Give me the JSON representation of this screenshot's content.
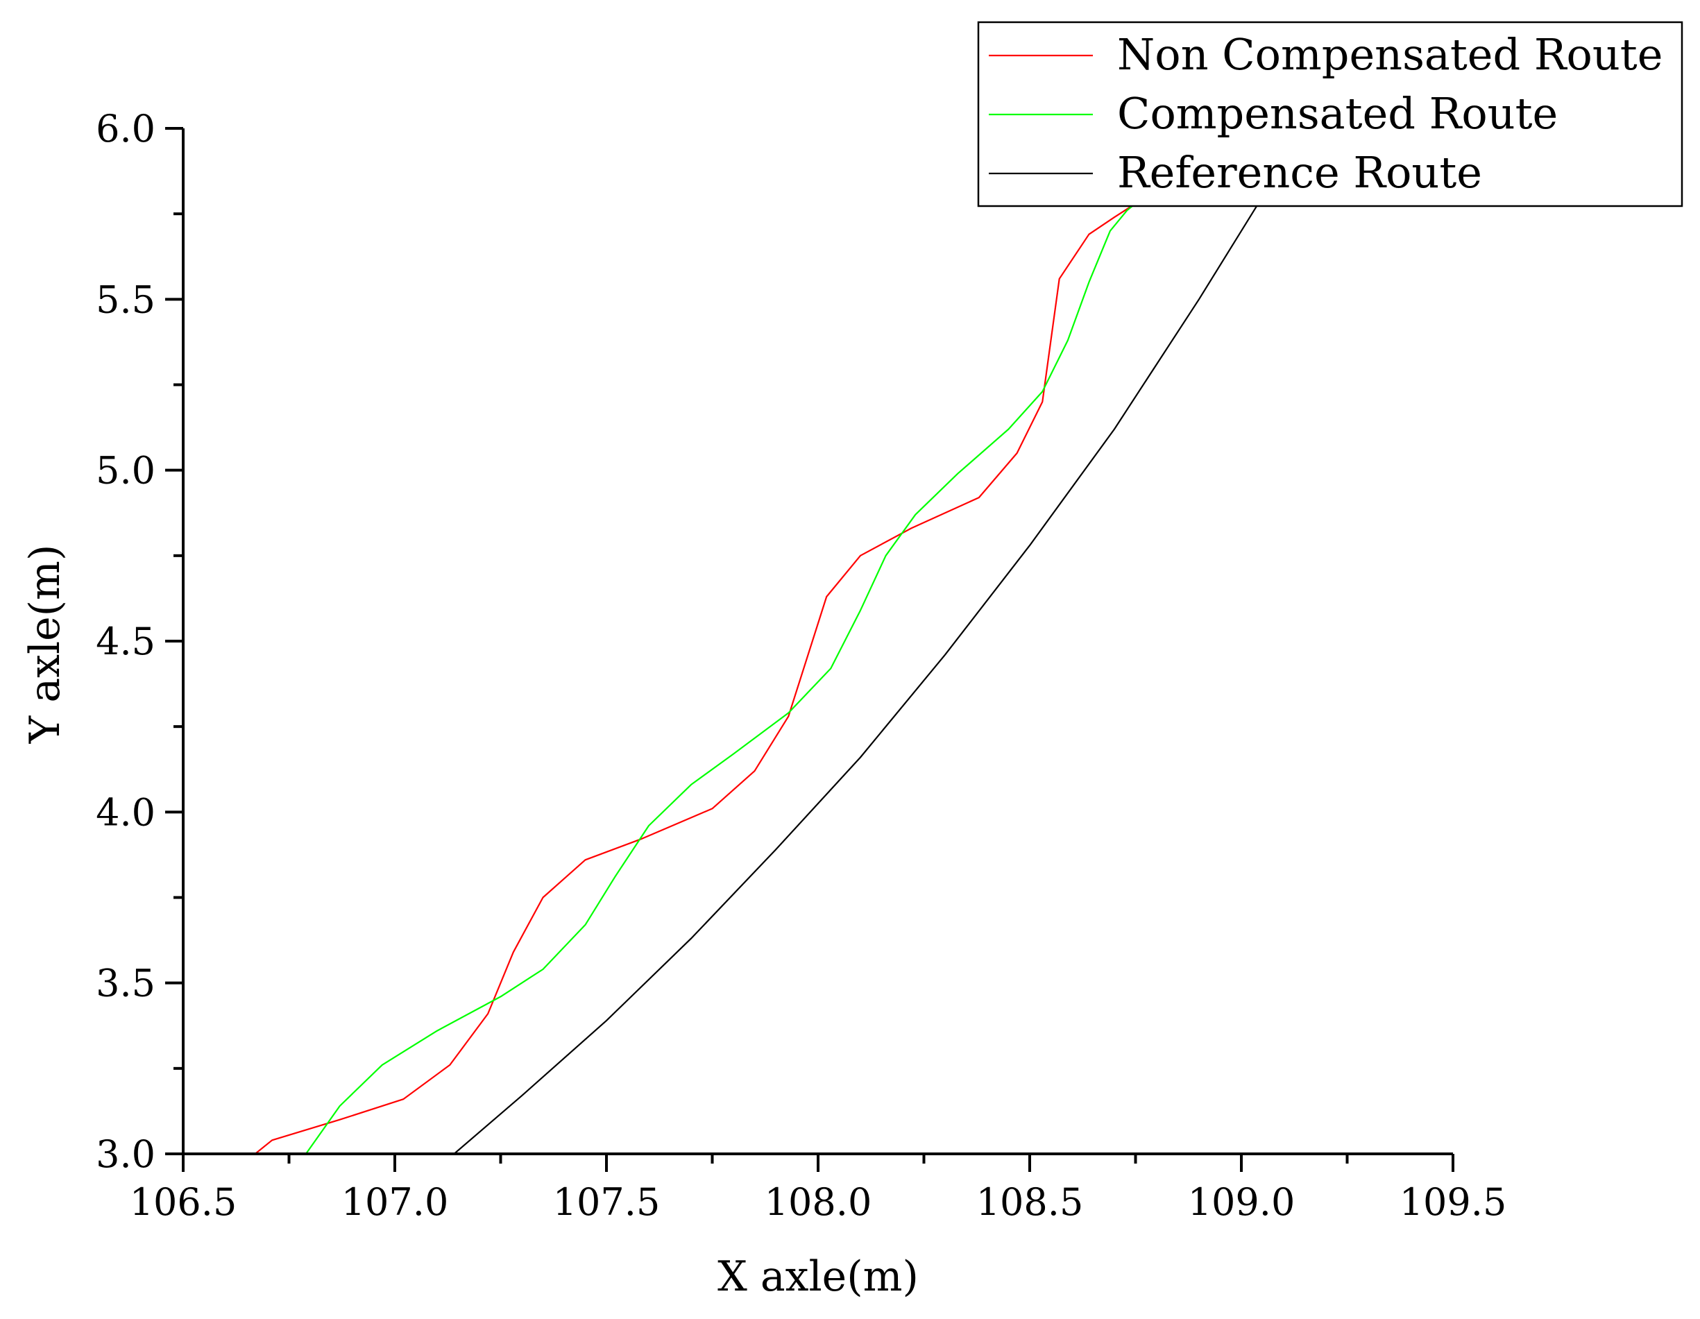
{
  "chart_data": {
    "type": "line",
    "title": "",
    "xlabel": "X axle(m)",
    "ylabel": "Y axle(m)",
    "xlim": [
      106.5,
      109.5
    ],
    "ylim": [
      3.0,
      6.0
    ],
    "xticks": [
      "106.5",
      "107.0",
      "107.5",
      "108.0",
      "108.5",
      "109.0",
      "109.5"
    ],
    "yticks": [
      "3.0",
      "3.5",
      "4.0",
      "4.5",
      "5.0",
      "5.5",
      "6.0"
    ],
    "grid": false,
    "legend_position": "top-right",
    "series": [
      {
        "name": "Non Compensated Route",
        "color": "#ff0000",
        "x": [
          106.67,
          106.71,
          106.87,
          107.02,
          107.13,
          107.22,
          107.28,
          107.35,
          107.45,
          107.58,
          107.75,
          107.85,
          107.93,
          108.02,
          108.1,
          108.22,
          108.38,
          108.47,
          108.53,
          108.57,
          108.64,
          108.7,
          108.75
        ],
        "y": [
          3.0,
          3.04,
          3.1,
          3.16,
          3.26,
          3.41,
          3.59,
          3.75,
          3.86,
          3.92,
          4.01,
          4.12,
          4.28,
          4.63,
          4.75,
          4.83,
          4.92,
          5.05,
          5.2,
          5.56,
          5.69,
          5.74,
          5.78
        ]
      },
      {
        "name": "Compensated Route",
        "color": "#00ff00",
        "x": [
          106.79,
          106.87,
          106.97,
          107.1,
          107.25,
          107.35,
          107.45,
          107.52,
          107.6,
          107.7,
          107.8,
          107.93,
          108.03,
          108.1,
          108.16,
          108.23,
          108.33,
          108.45,
          108.53,
          108.59,
          108.64,
          108.69,
          108.73,
          108.75
        ],
        "y": [
          3.0,
          3.14,
          3.26,
          3.36,
          3.46,
          3.54,
          3.67,
          3.81,
          3.96,
          4.08,
          4.17,
          4.29,
          4.42,
          4.59,
          4.75,
          4.87,
          4.99,
          5.12,
          5.23,
          5.38,
          5.55,
          5.7,
          5.76,
          5.78
        ]
      },
      {
        "name": "Reference Route",
        "color": "#000000",
        "x": [
          107.14,
          107.3,
          107.5,
          107.7,
          107.9,
          108.1,
          108.3,
          108.5,
          108.7,
          108.9,
          109.06
        ],
        "y": [
          3.0,
          3.17,
          3.39,
          3.63,
          3.89,
          4.16,
          4.46,
          4.78,
          5.12,
          5.5,
          5.82
        ]
      }
    ]
  }
}
